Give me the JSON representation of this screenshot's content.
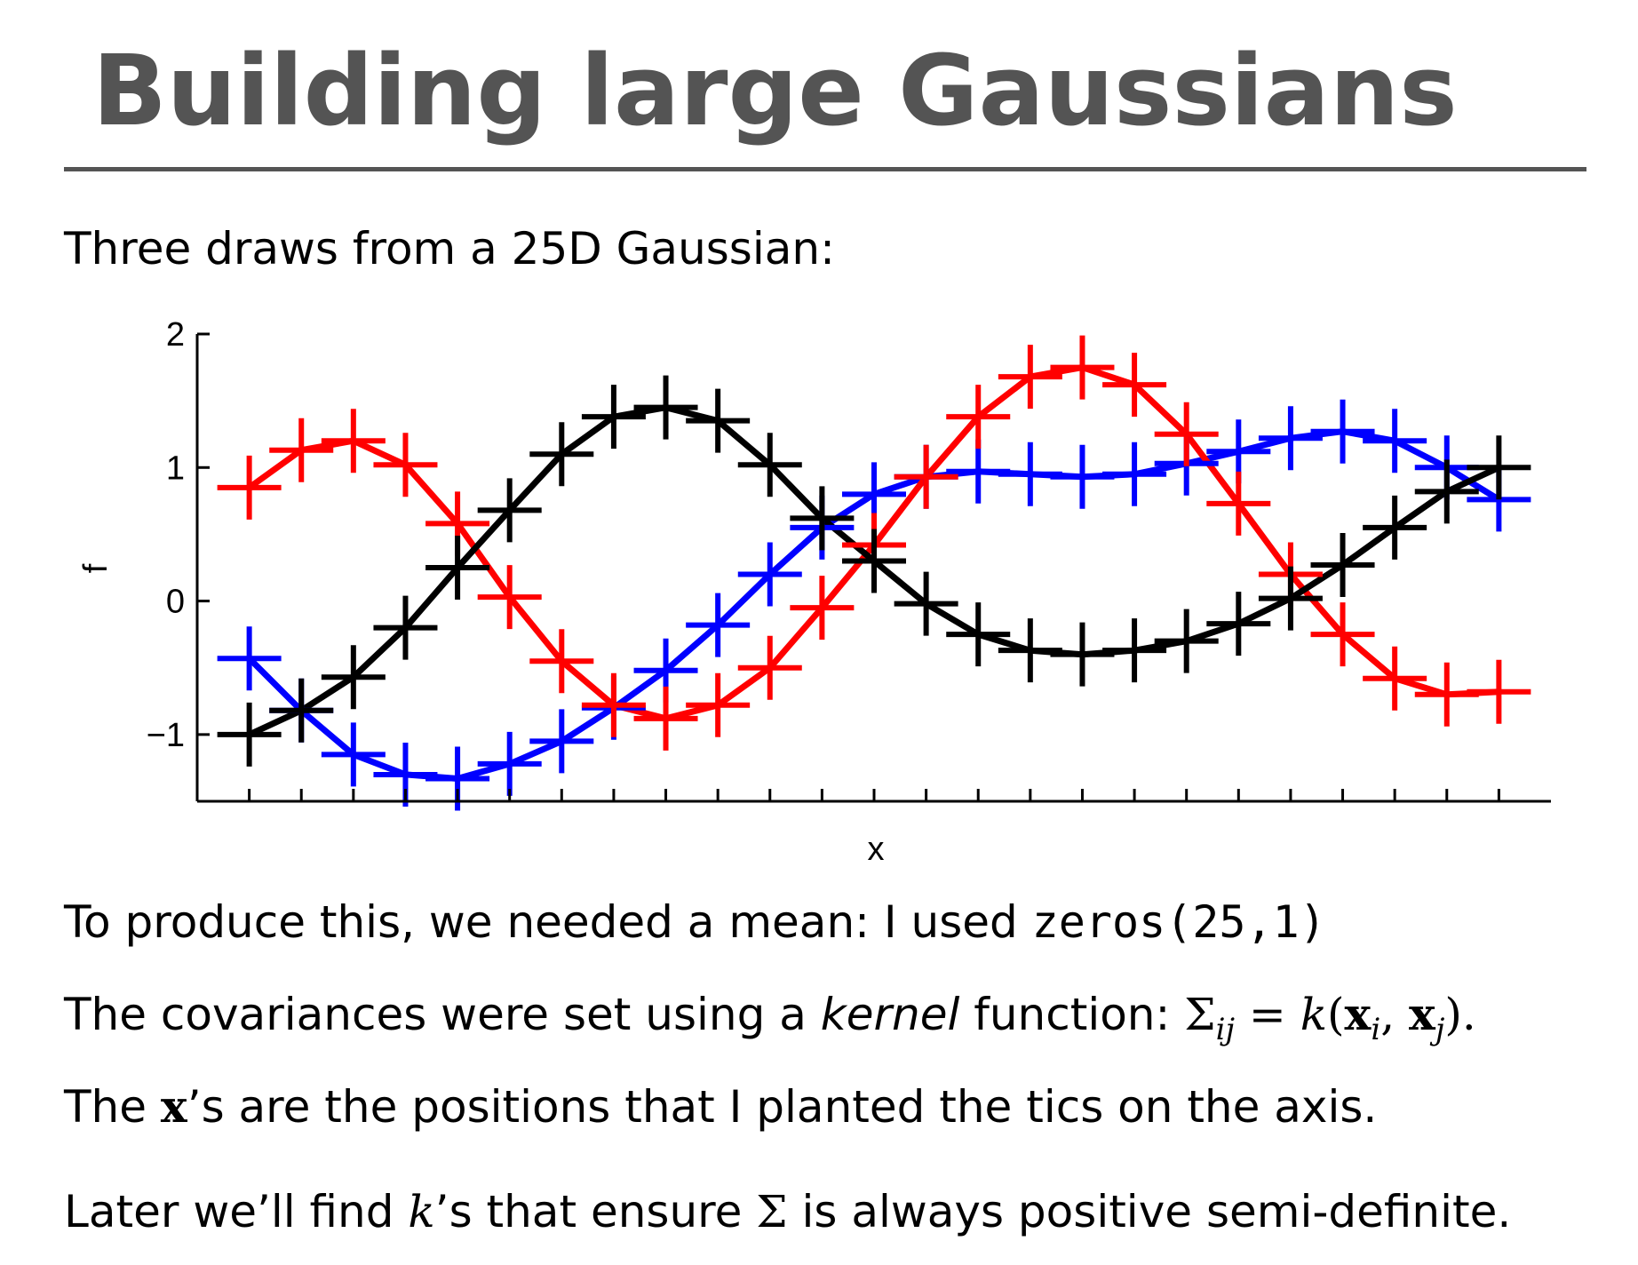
{
  "slide": {
    "title": "Building large Gaussians",
    "intro": "Three draws from a 25D Gaussian:",
    "line1_text": "To produce this, we needed a mean: I used ",
    "line1_code": "zeros(25,1)",
    "line2_pre": "The covariances were set using a ",
    "line2_italic": "kernel",
    "line2_mid": " function: ",
    "line2_sigma": "Σ",
    "line2_sub_ij": "ij",
    "line2_eq": " = ",
    "line2_k": "k",
    "line2_open": "(",
    "line2_x1": "x",
    "line2_sub_i": "i",
    "line2_comma": ", ",
    "line2_x2": "x",
    "line2_sub_j": "j",
    "line2_close": ").",
    "line3_pre": "The ",
    "line3_x": "x",
    "line3_post": "’s are the positions that I planted the tics on the axis.",
    "line4_pre": "Later we’ll find ",
    "line4_k": "k",
    "line4_mid": "’s that ensure ",
    "line4_sigma": "Σ",
    "line4_post": " is always positive semi-definite."
  },
  "chart_data": {
    "type": "line",
    "title": "",
    "xlabel": "x",
    "ylabel": "f",
    "ylim": [
      -1.5,
      2
    ],
    "y_ticks": [
      -1,
      0,
      1,
      2
    ],
    "y_tick_labels": [
      "−1",
      "0",
      "1",
      "2"
    ],
    "x": [
      1,
      2,
      3,
      4,
      5,
      6,
      7,
      8,
      9,
      10,
      11,
      12,
      13,
      14,
      15,
      16,
      17,
      18,
      19,
      20,
      21,
      22,
      23,
      24,
      25
    ],
    "xlim": [
      0,
      26
    ],
    "x_tick_labels_shown": false,
    "marker": "plus",
    "grid": false,
    "series": [
      {
        "color": "#0000ff",
        "values": [
          -0.43,
          -0.82,
          -1.15,
          -1.3,
          -1.33,
          -1.22,
          -1.05,
          -0.8,
          -0.52,
          -0.18,
          0.2,
          0.55,
          0.8,
          0.93,
          0.97,
          0.95,
          0.93,
          0.95,
          1.03,
          1.12,
          1.22,
          1.27,
          1.2,
          1.0,
          0.76
        ]
      },
      {
        "color": "#ff0000",
        "values": [
          0.85,
          1.13,
          1.2,
          1.02,
          0.58,
          0.03,
          -0.45,
          -0.78,
          -0.88,
          -0.78,
          -0.5,
          -0.05,
          0.42,
          0.93,
          1.38,
          1.68,
          1.75,
          1.62,
          1.25,
          0.73,
          0.2,
          -0.25,
          -0.58,
          -0.7,
          -0.68
        ]
      },
      {
        "color": "#000000",
        "values": [
          -1.0,
          -0.82,
          -0.57,
          -0.2,
          0.25,
          0.68,
          1.1,
          1.38,
          1.45,
          1.35,
          1.02,
          0.62,
          0.3,
          -0.02,
          -0.25,
          -0.37,
          -0.4,
          -0.37,
          -0.3,
          -0.17,
          0.02,
          0.27,
          0.55,
          0.82,
          1.0
        ]
      }
    ]
  }
}
